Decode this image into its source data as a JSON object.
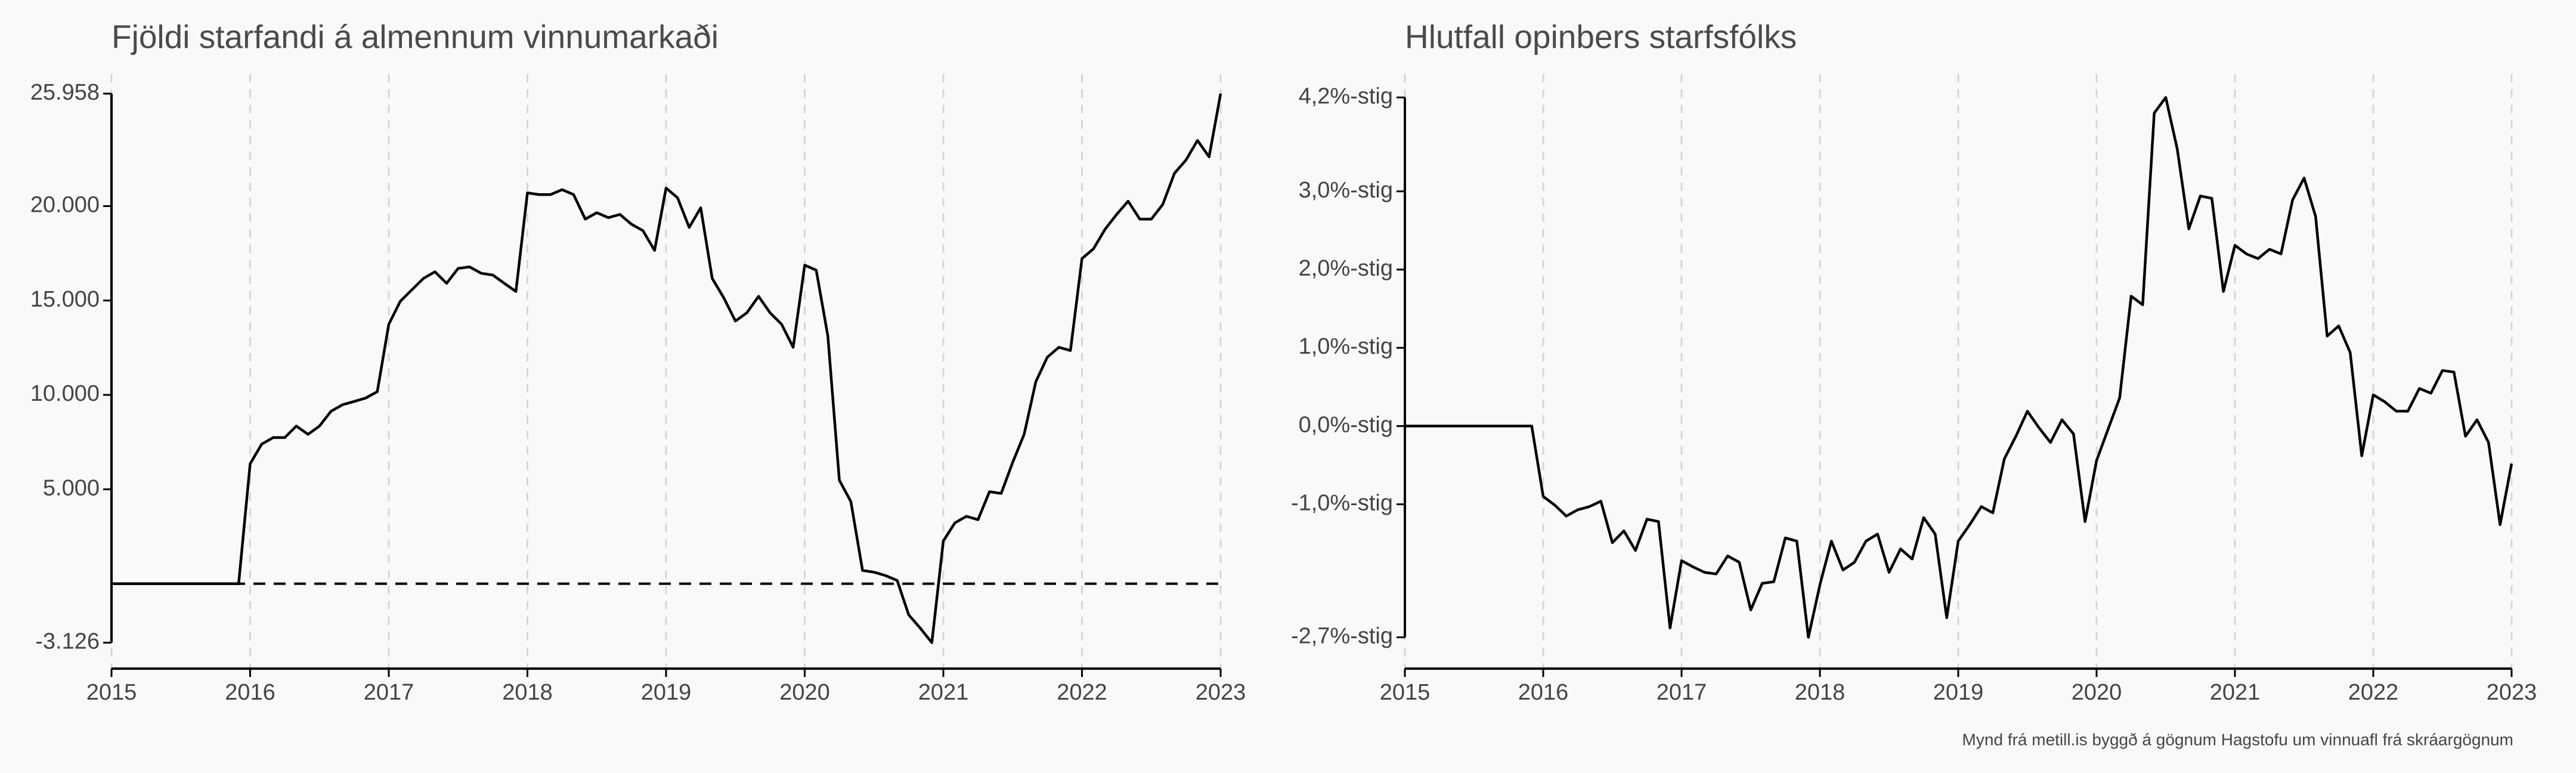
{
  "chart_data": [
    {
      "type": "line",
      "title": "Fjöldi starfandi á almennum vinnumarkaði",
      "x": [
        2015,
        2015.083,
        2015.167,
        2015.25,
        2015.333,
        2015.417,
        2015.5,
        2015.583,
        2015.667,
        2015.75,
        2015.833,
        2015.917,
        2016,
        2016.083,
        2016.167,
        2016.25,
        2016.333,
        2016.417,
        2016.5,
        2016.583,
        2016.667,
        2016.75,
        2016.833,
        2016.917,
        2017,
        2017.083,
        2017.167,
        2017.25,
        2017.333,
        2017.417,
        2017.5,
        2017.583,
        2017.667,
        2017.75,
        2017.833,
        2017.917,
        2018,
        2018.083,
        2018.167,
        2018.25,
        2018.333,
        2018.417,
        2018.5,
        2018.583,
        2018.667,
        2018.75,
        2018.833,
        2018.917,
        2019,
        2019.083,
        2019.167,
        2019.25,
        2019.333,
        2019.417,
        2019.5,
        2019.583,
        2019.667,
        2019.75,
        2019.833,
        2019.917,
        2020,
        2020.083,
        2020.167,
        2020.25,
        2020.333,
        2020.417,
        2020.5,
        2020.583,
        2020.667,
        2020.75,
        2020.833,
        2020.917,
        2021,
        2021.083,
        2021.167,
        2021.25,
        2021.333,
        2021.417,
        2021.5,
        2021.583,
        2021.667,
        2021.75,
        2021.833,
        2021.917,
        2022,
        2022.083,
        2022.167,
        2022.25,
        2022.333,
        2022.417,
        2022.5,
        2022.583,
        2022.667,
        2022.75,
        2022.833,
        2022.917,
        2023
      ],
      "series": [
        {
          "color": "#000000",
          "values": [
            0,
            0,
            0,
            0,
            0,
            0,
            0,
            0,
            0,
            0,
            0,
            0,
            6350,
            7390,
            7740,
            7740,
            8350,
            7910,
            8350,
            9130,
            9480,
            9650,
            9830,
            10170,
            13740,
            14960,
            15570,
            16170,
            16520,
            15910,
            16700,
            16780,
            16440,
            16350,
            15910,
            15480,
            20700,
            20610,
            20610,
            20870,
            20610,
            19310,
            19650,
            19390,
            19560,
            19040,
            18700,
            17650,
            20960,
            20440,
            18870,
            19910,
            16170,
            15130,
            13910,
            14350,
            15220,
            14350,
            13740,
            12520,
            16870,
            16610,
            13130,
            5480,
            4350,
            700,
            610,
            430,
            170,
            -1650,
            -2350,
            -3126,
            2260,
            3220,
            3570,
            3390,
            4870,
            4780,
            6430,
            7910,
            10700,
            12000,
            12520,
            12350,
            17220,
            17740,
            18780,
            19560,
            20260,
            19310,
            19310,
            20090,
            21740,
            22440,
            23480,
            22610,
            25958
          ]
        }
      ],
      "hline": 0,
      "xlim": [
        2015,
        2023
      ],
      "xticks": [
        2015,
        2016,
        2017,
        2018,
        2019,
        2020,
        2021,
        2022,
        2023
      ],
      "ylim": [
        -4500,
        27000
      ],
      "yticks": [
        {
          "value": -3126,
          "label": "-3.126"
        },
        {
          "value": 5000,
          "label": "5.000"
        },
        {
          "value": 10000,
          "label": "10.000"
        },
        {
          "value": 15000,
          "label": "15.000"
        },
        {
          "value": 20000,
          "label": "20.000"
        },
        {
          "value": 25958,
          "label": "25.958"
        }
      ],
      "grid": "x"
    },
    {
      "type": "line",
      "title": "Hlutfall opinbers starfsfólks",
      "x": [
        2015,
        2015.083,
        2015.167,
        2015.25,
        2015.333,
        2015.417,
        2015.5,
        2015.583,
        2015.667,
        2015.75,
        2015.833,
        2015.917,
        2016,
        2016.083,
        2016.167,
        2016.25,
        2016.333,
        2016.417,
        2016.5,
        2016.583,
        2016.667,
        2016.75,
        2016.833,
        2016.917,
        2017,
        2017.083,
        2017.167,
        2017.25,
        2017.333,
        2017.417,
        2017.5,
        2017.583,
        2017.667,
        2017.75,
        2017.833,
        2017.917,
        2018,
        2018.083,
        2018.167,
        2018.25,
        2018.333,
        2018.417,
        2018.5,
        2018.583,
        2018.667,
        2018.75,
        2018.833,
        2018.917,
        2019,
        2019.083,
        2019.167,
        2019.25,
        2019.333,
        2019.417,
        2019.5,
        2019.583,
        2019.667,
        2019.75,
        2019.833,
        2019.917,
        2020,
        2020.083,
        2020.167,
        2020.25,
        2020.333,
        2020.417,
        2020.5,
        2020.583,
        2020.667,
        2020.75,
        2020.833,
        2020.917,
        2021,
        2021.083,
        2021.167,
        2021.25,
        2021.333,
        2021.417,
        2021.5,
        2021.583,
        2021.667,
        2021.75,
        2021.833,
        2021.917,
        2022,
        2022.083,
        2022.167,
        2022.25,
        2022.333,
        2022.417,
        2022.5,
        2022.583,
        2022.667,
        2022.75,
        2022.833,
        2022.917,
        2023
      ],
      "series": [
        {
          "color": "#000000",
          "values": [
            0,
            0,
            0,
            0,
            0,
            0,
            0,
            0,
            0,
            0,
            0,
            0,
            -0.9,
            -1.01,
            -1.15,
            -1.07,
            -1.03,
            -0.96,
            -1.49,
            -1.34,
            -1.59,
            -1.19,
            -1.22,
            -2.58,
            -1.72,
            -1.8,
            -1.87,
            -1.89,
            -1.66,
            -1.74,
            -2.35,
            -2.01,
            -1.99,
            -1.43,
            -1.47,
            -2.7,
            -2.03,
            -1.47,
            -1.84,
            -1.74,
            -1.47,
            -1.38,
            -1.87,
            -1.57,
            -1.7,
            -1.17,
            -1.38,
            -2.45,
            -1.47,
            -1.26,
            -1.03,
            -1.11,
            -0.42,
            -0.13,
            0.19,
            -0.02,
            -0.21,
            0.08,
            -0.1,
            -1.22,
            -0.44,
            -0.04,
            0.36,
            1.66,
            1.55,
            4.0,
            4.2,
            3.54,
            2.52,
            2.94,
            2.91,
            1.72,
            2.31,
            2.2,
            2.14,
            2.26,
            2.2,
            2.89,
            3.17,
            2.68,
            1.15,
            1.28,
            0.94,
            -0.38,
            0.4,
            0.31,
            0.19,
            0.19,
            0.48,
            0.42,
            0.71,
            0.69,
            -0.13,
            0.08,
            -0.21,
            -1.26,
            -0.48
          ]
        }
      ],
      "xlim": [
        2015,
        2023
      ],
      "xticks": [
        2015,
        2016,
        2017,
        2018,
        2019,
        2020,
        2021,
        2022,
        2023
      ],
      "ylim": [
        -3.1,
        4.5
      ],
      "yticks": [
        {
          "value": -2.7,
          "label": "-2,7%-stig"
        },
        {
          "value": -1,
          "label": "-1,0%-stig"
        },
        {
          "value": 0,
          "label": "0,0%-stig"
        },
        {
          "value": 1,
          "label": "1,0%-stig"
        },
        {
          "value": 2,
          "label": "2,0%-stig"
        },
        {
          "value": 3,
          "label": "3,0%-stig"
        },
        {
          "value": 4.2,
          "label": "4,2%-stig"
        }
      ],
      "grid": "x"
    }
  ],
  "caption": "Mynd frá metill.is byggð á gögnum Hagstofu um vinnuafl frá skráargögnum"
}
